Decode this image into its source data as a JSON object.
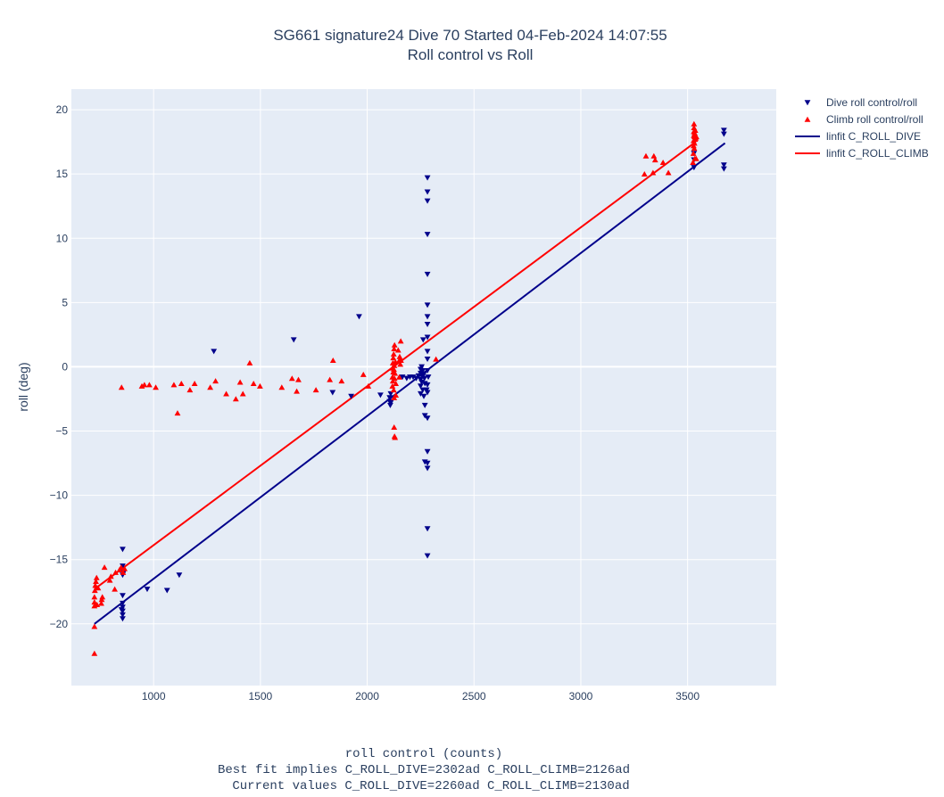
{
  "chart_data": {
    "type": "scatter",
    "title": "SG661 signature24 Dive 70 Started 04-Feb-2024 14:07:55",
    "subtitle": "Roll control vs Roll",
    "xlabel": "roll control (counts)",
    "xlabel_notes": [
      "Best fit implies C_ROLL_DIVE=2302ad C_ROLL_CLIMB=2126ad",
      "Current values C_ROLL_DIVE=2260ad C_ROLL_CLIMB=2130ad"
    ],
    "ylabel": "roll (deg)",
    "xlim": [
      615,
      3915
    ],
    "ylim": [
      -24.8,
      21.6
    ],
    "x_ticks": [
      1000,
      1500,
      2000,
      2500,
      3000,
      3500
    ],
    "x_tick_labels": [
      "1000",
      "1500",
      "2000",
      "2500",
      "3000",
      "3500"
    ],
    "y_ticks": [
      20,
      15,
      10,
      5,
      0,
      -5,
      -10,
      -15,
      -20
    ],
    "y_tick_labels": [
      "20",
      "15",
      "10",
      "5",
      "0",
      "−5",
      "−10",
      "−15",
      "−20"
    ],
    "grid": true,
    "plot_background": "#e5ecf6",
    "legend_position": "top-right",
    "series": [
      {
        "name": "Dive roll control/roll",
        "kind": "scatter",
        "marker": "triangle-down",
        "color": "#00008b",
        "points": [
          [
            855,
            -14.2
          ],
          [
            855,
            -15.5
          ],
          [
            855,
            -16.2
          ],
          [
            855,
            -17.8
          ],
          [
            855,
            -18.4
          ],
          [
            855,
            -18.7
          ],
          [
            855,
            -19.0
          ],
          [
            855,
            -19.3
          ],
          [
            855,
            -19.6
          ],
          [
            850,
            -18.9
          ],
          [
            860,
            -16.0
          ],
          [
            970,
            -17.3
          ],
          [
            1063,
            -17.4
          ],
          [
            1120,
            -16.2
          ],
          [
            1282,
            1.2
          ],
          [
            1656,
            2.1
          ],
          [
            1838,
            -2.0
          ],
          [
            1925,
            -2.3
          ],
          [
            1962,
            3.9
          ],
          [
            2062,
            -2.2
          ],
          [
            2105,
            -2.4
          ],
          [
            2105,
            -2.7
          ],
          [
            2108,
            -3.0
          ],
          [
            2110,
            -2.1
          ],
          [
            2110,
            -2.8
          ],
          [
            2165,
            -0.8
          ],
          [
            2185,
            -0.9
          ],
          [
            2200,
            -0.8
          ],
          [
            2215,
            -0.8
          ],
          [
            2230,
            -0.9
          ],
          [
            2240,
            -0.7
          ],
          [
            2250,
            -0.2
          ],
          [
            2250,
            -0.5
          ],
          [
            2250,
            -1.0
          ],
          [
            2250,
            -1.5
          ],
          [
            2250,
            -2.1
          ],
          [
            2255,
            0.0
          ],
          [
            2255,
            -0.7
          ],
          [
            2255,
            -1.2
          ],
          [
            2260,
            -0.3
          ],
          [
            2260,
            -1.8
          ],
          [
            2262,
            2.1
          ],
          [
            2265,
            -0.6
          ],
          [
            2265,
            -2.3
          ],
          [
            2268,
            -0.9
          ],
          [
            2270,
            -1.3
          ],
          [
            2270,
            -3.0
          ],
          [
            2270,
            -3.8
          ],
          [
            2270,
            -7.4
          ],
          [
            2282,
            14.7
          ],
          [
            2282,
            13.6
          ],
          [
            2282,
            12.9
          ],
          [
            2282,
            10.3
          ],
          [
            2282,
            7.2
          ],
          [
            2282,
            4.8
          ],
          [
            2282,
            3.9
          ],
          [
            2282,
            3.3
          ],
          [
            2282,
            2.3
          ],
          [
            2282,
            1.2
          ],
          [
            2282,
            0.6
          ],
          [
            2282,
            -0.3
          ],
          [
            2282,
            -1.4
          ],
          [
            2282,
            -2.0
          ],
          [
            2282,
            -4.0
          ],
          [
            2282,
            -6.6
          ],
          [
            2282,
            -7.5
          ],
          [
            2282,
            -7.9
          ],
          [
            2282,
            -12.6
          ],
          [
            2282,
            -14.7
          ],
          [
            2278,
            -1.8
          ],
          [
            2286,
            -0.8
          ],
          [
            3530,
            16.6
          ],
          [
            3530,
            16.1
          ],
          [
            3530,
            15.5
          ],
          [
            3670,
            18.4
          ],
          [
            3670,
            18.1
          ],
          [
            3670,
            15.7
          ],
          [
            3670,
            15.4
          ]
        ]
      },
      {
        "name": "Climb roll control/roll",
        "kind": "scatter",
        "marker": "triangle-up",
        "color": "#ff0000",
        "points": [
          [
            723,
            -22.3
          ],
          [
            723,
            -20.2
          ],
          [
            723,
            -18.6
          ],
          [
            723,
            -18.3
          ],
          [
            723,
            -17.9
          ],
          [
            725,
            -17.4
          ],
          [
            727,
            -17.0
          ],
          [
            730,
            -16.7
          ],
          [
            733,
            -16.4
          ],
          [
            735,
            -18.5
          ],
          [
            740,
            -17.2
          ],
          [
            755,
            -18.4
          ],
          [
            757,
            -18.1
          ],
          [
            760,
            -17.9
          ],
          [
            770,
            -15.6
          ],
          [
            795,
            -16.6
          ],
          [
            800,
            -16.3
          ],
          [
            818,
            -17.3
          ],
          [
            822,
            -16.0
          ],
          [
            840,
            -15.8
          ],
          [
            848,
            -15.6
          ],
          [
            857,
            -16.0
          ],
          [
            864,
            -15.7
          ],
          [
            850,
            -1.6
          ],
          [
            945,
            -1.5
          ],
          [
            957,
            -1.4
          ],
          [
            980,
            -1.4
          ],
          [
            1010,
            -1.6
          ],
          [
            1095,
            -1.4
          ],
          [
            1112,
            -3.6
          ],
          [
            1130,
            -1.3
          ],
          [
            1170,
            -1.8
          ],
          [
            1192,
            -1.3
          ],
          [
            1265,
            -1.6
          ],
          [
            1290,
            -1.1
          ],
          [
            1340,
            -2.1
          ],
          [
            1385,
            -2.5
          ],
          [
            1405,
            -1.2
          ],
          [
            1418,
            -2.1
          ],
          [
            1450,
            0.3
          ],
          [
            1468,
            -1.3
          ],
          [
            1498,
            -1.5
          ],
          [
            1600,
            -1.6
          ],
          [
            1648,
            -0.9
          ],
          [
            1670,
            -1.9
          ],
          [
            1678,
            -1.0
          ],
          [
            1760,
            -1.8
          ],
          [
            1825,
            -1.0
          ],
          [
            1840,
            0.5
          ],
          [
            1880,
            -1.1
          ],
          [
            1982,
            -0.6
          ],
          [
            2005,
            -1.5
          ],
          [
            2118,
            -0.1
          ],
          [
            2118,
            -0.8
          ],
          [
            2118,
            -1.5
          ],
          [
            2120,
            0.3
          ],
          [
            2120,
            -1.1
          ],
          [
            2122,
            0.7
          ],
          [
            2122,
            -0.4
          ],
          [
            2124,
            1.0
          ],
          [
            2124,
            -1.8
          ],
          [
            2125,
            -0.2
          ],
          [
            2126,
            1.4
          ],
          [
            2126,
            -2.4
          ],
          [
            2126,
            -4.7
          ],
          [
            2127,
            0.1
          ],
          [
            2128,
            1.7
          ],
          [
            2128,
            -0.9
          ],
          [
            2128,
            -5.4
          ],
          [
            2130,
            -0.5
          ],
          [
            2130,
            -5.5
          ],
          [
            2132,
            0.4
          ],
          [
            2134,
            -1.3
          ],
          [
            2134,
            -2.2
          ],
          [
            2145,
            1.3
          ],
          [
            2150,
            0.5
          ],
          [
            2150,
            -0.8
          ],
          [
            2152,
            0.8
          ],
          [
            2155,
            0.2
          ],
          [
            2157,
            2.0
          ],
          [
            2158,
            0.5
          ],
          [
            2322,
            0.6
          ],
          [
            3298,
            15.0
          ],
          [
            3305,
            16.4
          ],
          [
            3338,
            15.1
          ],
          [
            3342,
            16.4
          ],
          [
            3348,
            16.1
          ],
          [
            3385,
            15.9
          ],
          [
            3410,
            15.1
          ],
          [
            3525,
            15.9
          ],
          [
            3527,
            16.6
          ],
          [
            3528,
            17.2
          ],
          [
            3528,
            17.6
          ],
          [
            3529,
            18.0
          ],
          [
            3529,
            18.3
          ],
          [
            3530,
            18.6
          ],
          [
            3530,
            18.9
          ],
          [
            3531,
            17.0
          ],
          [
            3532,
            17.4
          ],
          [
            3532,
            17.9
          ],
          [
            3533,
            18.2
          ],
          [
            3534,
            16.2
          ],
          [
            3535,
            17.7
          ],
          [
            3536,
            18.4
          ],
          [
            3537,
            18.0
          ],
          [
            3538,
            17.8
          ],
          [
            3540,
            16.2
          ],
          [
            3541,
            17.9
          ]
        ]
      },
      {
        "name": "linfit C_ROLL_DIVE",
        "kind": "line",
        "color": "#00008b",
        "x": [
          723,
          3675
        ],
        "y": [
          -20.0,
          17.4
        ]
      },
      {
        "name": "linfit C_ROLL_CLIMB",
        "kind": "line",
        "color": "#ff0000",
        "x": [
          723,
          3530
        ],
        "y": [
          -17.3,
          17.4
        ]
      }
    ]
  }
}
